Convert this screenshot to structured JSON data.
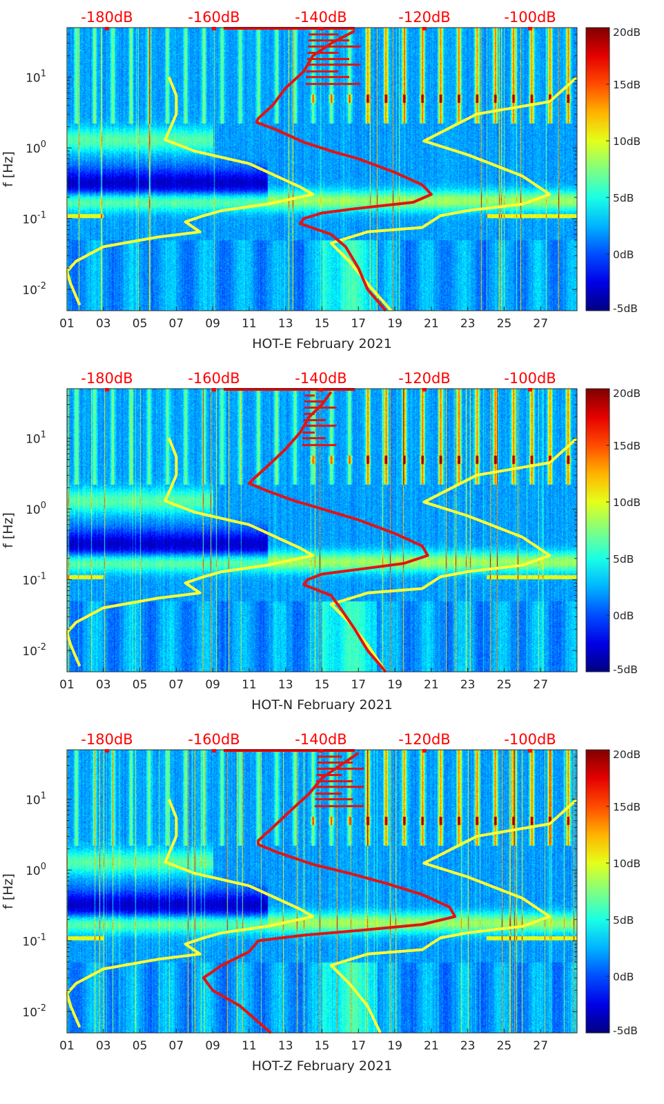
{
  "colors": {
    "yellow_line": "#ffff33",
    "red_line": "#e01414",
    "top_axis": "#ff0000",
    "axis": "#262626"
  },
  "colormap": "jet",
  "chart_data": [
    {
      "type": "heatmap",
      "id": "E",
      "xlabel": "HOT-E February 2021",
      "ylabel": "f [Hz]",
      "x_ticks": [
        "01",
        "03",
        "05",
        "07",
        "09",
        "11",
        "13",
        "15",
        "17",
        "19",
        "21",
        "23",
        "25",
        "27"
      ],
      "xlim_days": [
        1,
        29
      ],
      "ylim_hz": [
        0.005,
        50
      ],
      "y_ticks": [
        {
          "value": 0.01,
          "base": "10",
          "exp": "-2"
        },
        {
          "value": 0.1,
          "base": "10",
          "exp": "-1"
        },
        {
          "value": 1,
          "base": "10",
          "exp": "0"
        },
        {
          "value": 10,
          "base": "10",
          "exp": "1"
        }
      ],
      "top_axis_labels": [
        "-180dB",
        "-160dB",
        "-140dB",
        "-120dB",
        "-100dB"
      ],
      "colorbar_labels": [
        "20dB",
        "15dB",
        "10dB",
        "5dB",
        "0dB",
        "-5dB"
      ],
      "colorbar_range_db": [
        -5,
        20
      ],
      "series": [
        {
          "name": "noise-model-low",
          "color": "yellow",
          "points": [
            [
              6.6,
              10
            ],
            [
              7.0,
              5.5
            ],
            [
              7.0,
              3.0
            ],
            [
              6.4,
              1.3
            ],
            [
              8.0,
              0.9
            ],
            [
              11.0,
              0.6
            ],
            [
              13.8,
              0.28
            ],
            [
              14.5,
              0.22
            ],
            [
              12.0,
              0.16
            ],
            [
              9.5,
              0.13
            ],
            [
              8.5,
              0.11
            ],
            [
              7.5,
              0.09
            ],
            [
              8.3,
              0.065
            ],
            [
              6.0,
              0.055
            ],
            [
              3.0,
              0.04
            ],
            [
              1.5,
              0.025
            ],
            [
              1.0,
              0.018
            ],
            [
              1.2,
              0.012
            ],
            [
              1.7,
              0.006
            ]
          ]
        },
        {
          "name": "noise-model-high",
          "color": "yellow",
          "points": [
            [
              29.0,
              10
            ],
            [
              27.5,
              4.5
            ],
            [
              23.5,
              3.0
            ],
            [
              20.6,
              1.25
            ],
            [
              23.0,
              0.8
            ],
            [
              26.0,
              0.4
            ],
            [
              27.5,
              0.22
            ],
            [
              26.0,
              0.16
            ],
            [
              23.0,
              0.13
            ],
            [
              21.5,
              0.11
            ],
            [
              20.5,
              0.075
            ],
            [
              17.5,
              0.065
            ],
            [
              15.5,
              0.045
            ],
            [
              16.5,
              0.025
            ],
            [
              17.5,
              0.012
            ],
            [
              18.8,
              0.005
            ]
          ]
        },
        {
          "name": "noise-psd",
          "color": "red",
          "points": [
            [
              16.8,
              45
            ],
            [
              15.5,
              30
            ],
            [
              14.5,
              20
            ],
            [
              14.0,
              12
            ],
            [
              13.0,
              7
            ],
            [
              12.3,
              4
            ],
            [
              11.5,
              2.6
            ],
            [
              11.4,
              2.3
            ],
            [
              12.5,
              1.8
            ],
            [
              14.0,
              1.2
            ],
            [
              15.5,
              0.9
            ],
            [
              17.0,
              0.7
            ],
            [
              19.0,
              0.45
            ],
            [
              20.5,
              0.3
            ],
            [
              21.0,
              0.22
            ],
            [
              20.0,
              0.17
            ],
            [
              17.0,
              0.14
            ],
            [
              15.0,
              0.12
            ],
            [
              14.0,
              0.1
            ],
            [
              13.8,
              0.085
            ],
            [
              15.5,
              0.06
            ],
            [
              16.3,
              0.04
            ],
            [
              17.0,
              0.02
            ],
            [
              17.5,
              0.01
            ],
            [
              18.5,
              0.005
            ]
          ]
        }
      ]
    },
    {
      "type": "heatmap",
      "id": "N",
      "xlabel": "HOT-N February 2021",
      "ylabel": "f [Hz]",
      "x_ticks": [
        "01",
        "03",
        "05",
        "07",
        "09",
        "11",
        "13",
        "15",
        "17",
        "19",
        "21",
        "23",
        "25",
        "27"
      ],
      "xlim_days": [
        1,
        29
      ],
      "ylim_hz": [
        0.005,
        50
      ],
      "y_ticks": [
        {
          "value": 0.01,
          "base": "10",
          "exp": "-2"
        },
        {
          "value": 0.1,
          "base": "10",
          "exp": "-1"
        },
        {
          "value": 1,
          "base": "10",
          "exp": "0"
        },
        {
          "value": 10,
          "base": "10",
          "exp": "1"
        }
      ],
      "top_axis_labels": [
        "-180dB",
        "-160dB",
        "-140dB",
        "-120dB",
        "-100dB"
      ],
      "colorbar_labels": [
        "20dB",
        "15dB",
        "10dB",
        "5dB",
        "0dB",
        "-5dB"
      ],
      "colorbar_range_db": [
        -5,
        20
      ],
      "series": [
        {
          "name": "noise-model-low",
          "color": "yellow",
          "points": [
            [
              6.6,
              10
            ],
            [
              7.0,
              5.5
            ],
            [
              7.0,
              3.0
            ],
            [
              6.4,
              1.3
            ],
            [
              8.0,
              0.9
            ],
            [
              11.0,
              0.6
            ],
            [
              13.8,
              0.28
            ],
            [
              14.5,
              0.22
            ],
            [
              12.0,
              0.16
            ],
            [
              9.5,
              0.13
            ],
            [
              8.5,
              0.11
            ],
            [
              7.5,
              0.09
            ],
            [
              8.3,
              0.065
            ],
            [
              6.0,
              0.055
            ],
            [
              3.0,
              0.04
            ],
            [
              1.5,
              0.025
            ],
            [
              1.0,
              0.018
            ],
            [
              1.2,
              0.012
            ],
            [
              1.7,
              0.006
            ]
          ]
        },
        {
          "name": "noise-model-high",
          "color": "yellow",
          "points": [
            [
              29.0,
              10
            ],
            [
              27.5,
              4.5
            ],
            [
              23.5,
              3.0
            ],
            [
              20.6,
              1.25
            ],
            [
              23.0,
              0.8
            ],
            [
              26.0,
              0.4
            ],
            [
              27.5,
              0.22
            ],
            [
              26.0,
              0.16
            ],
            [
              23.0,
              0.13
            ],
            [
              21.5,
              0.11
            ],
            [
              20.5,
              0.075
            ],
            [
              17.5,
              0.065
            ],
            [
              15.5,
              0.045
            ],
            [
              16.5,
              0.025
            ],
            [
              17.5,
              0.012
            ],
            [
              18.5,
              0.005
            ]
          ]
        },
        {
          "name": "noise-psd",
          "color": "red",
          "points": [
            [
              15.5,
              45
            ],
            [
              15.0,
              30
            ],
            [
              14.3,
              20
            ],
            [
              13.8,
              12
            ],
            [
              13.0,
              7
            ],
            [
              12.0,
              4
            ],
            [
              11.2,
              2.6
            ],
            [
              11.0,
              2.3
            ],
            [
              12.0,
              1.8
            ],
            [
              13.5,
              1.3
            ],
            [
              15.0,
              1.0
            ],
            [
              17.0,
              0.7
            ],
            [
              19.0,
              0.45
            ],
            [
              20.5,
              0.3
            ],
            [
              20.8,
              0.22
            ],
            [
              19.5,
              0.17
            ],
            [
              17.0,
              0.14
            ],
            [
              15.0,
              0.12
            ],
            [
              14.2,
              0.1
            ],
            [
              14.0,
              0.085
            ],
            [
              15.5,
              0.06
            ],
            [
              16.0,
              0.04
            ],
            [
              16.8,
              0.02
            ],
            [
              17.5,
              0.01
            ],
            [
              18.5,
              0.005
            ]
          ]
        }
      ]
    },
    {
      "type": "heatmap",
      "id": "Z",
      "xlabel": "HOT-Z February 2021",
      "ylabel": "f [Hz]",
      "x_ticks": [
        "01",
        "03",
        "05",
        "07",
        "09",
        "11",
        "13",
        "15",
        "17",
        "19",
        "21",
        "23",
        "25",
        "27"
      ],
      "xlim_days": [
        1,
        29
      ],
      "ylim_hz": [
        0.005,
        50
      ],
      "y_ticks": [
        {
          "value": 0.01,
          "base": "10",
          "exp": "-2"
        },
        {
          "value": 0.1,
          "base": "10",
          "exp": "-1"
        },
        {
          "value": 1,
          "base": "10",
          "exp": "0"
        },
        {
          "value": 10,
          "base": "10",
          "exp": "1"
        }
      ],
      "top_axis_labels": [
        "-180dB",
        "-160dB",
        "-140dB",
        "-120dB",
        "-100dB"
      ],
      "colorbar_labels": [
        "20dB",
        "15dB",
        "10dB",
        "5dB",
        "0dB",
        "-5dB"
      ],
      "colorbar_range_db": [
        -5,
        20
      ],
      "series": [
        {
          "name": "noise-model-low",
          "color": "yellow",
          "points": [
            [
              6.6,
              10
            ],
            [
              7.0,
              5.5
            ],
            [
              7.0,
              3.0
            ],
            [
              6.4,
              1.3
            ],
            [
              8.0,
              0.9
            ],
            [
              11.0,
              0.6
            ],
            [
              13.8,
              0.28
            ],
            [
              14.5,
              0.22
            ],
            [
              12.0,
              0.16
            ],
            [
              9.5,
              0.13
            ],
            [
              8.5,
              0.11
            ],
            [
              7.5,
              0.09
            ],
            [
              8.3,
              0.065
            ],
            [
              6.0,
              0.055
            ],
            [
              3.0,
              0.04
            ],
            [
              1.5,
              0.025
            ],
            [
              1.0,
              0.018
            ],
            [
              1.2,
              0.012
            ],
            [
              1.7,
              0.006
            ]
          ]
        },
        {
          "name": "noise-model-high",
          "color": "yellow",
          "points": [
            [
              29.0,
              10
            ],
            [
              27.5,
              4.5
            ],
            [
              23.5,
              3.0
            ],
            [
              20.6,
              1.25
            ],
            [
              23.0,
              0.8
            ],
            [
              26.0,
              0.4
            ],
            [
              27.5,
              0.22
            ],
            [
              26.0,
              0.16
            ],
            [
              23.0,
              0.13
            ],
            [
              21.5,
              0.11
            ],
            [
              20.5,
              0.075
            ],
            [
              17.5,
              0.065
            ],
            [
              15.5,
              0.045
            ],
            [
              16.5,
              0.025
            ],
            [
              17.5,
              0.012
            ],
            [
              18.2,
              0.005
            ]
          ]
        },
        {
          "name": "noise-psd",
          "color": "red",
          "points": [
            [
              17.0,
              45
            ],
            [
              16.0,
              30
            ],
            [
              15.0,
              20
            ],
            [
              14.3,
              12
            ],
            [
              13.3,
              7
            ],
            [
              12.3,
              4
            ],
            [
              11.5,
              2.6
            ],
            [
              11.5,
              2.3
            ],
            [
              12.5,
              1.8
            ],
            [
              14.5,
              1.2
            ],
            [
              16.5,
              0.9
            ],
            [
              18.5,
              0.65
            ],
            [
              20.5,
              0.45
            ],
            [
              22.0,
              0.3
            ],
            [
              22.3,
              0.22
            ],
            [
              20.5,
              0.17
            ],
            [
              17.0,
              0.14
            ],
            [
              14.0,
              0.12
            ],
            [
              11.5,
              0.1
            ],
            [
              11.0,
              0.07
            ],
            [
              9.5,
              0.045
            ],
            [
              8.5,
              0.03
            ],
            [
              9.0,
              0.02
            ],
            [
              10.5,
              0.012
            ],
            [
              12.2,
              0.005
            ]
          ]
        }
      ]
    }
  ]
}
